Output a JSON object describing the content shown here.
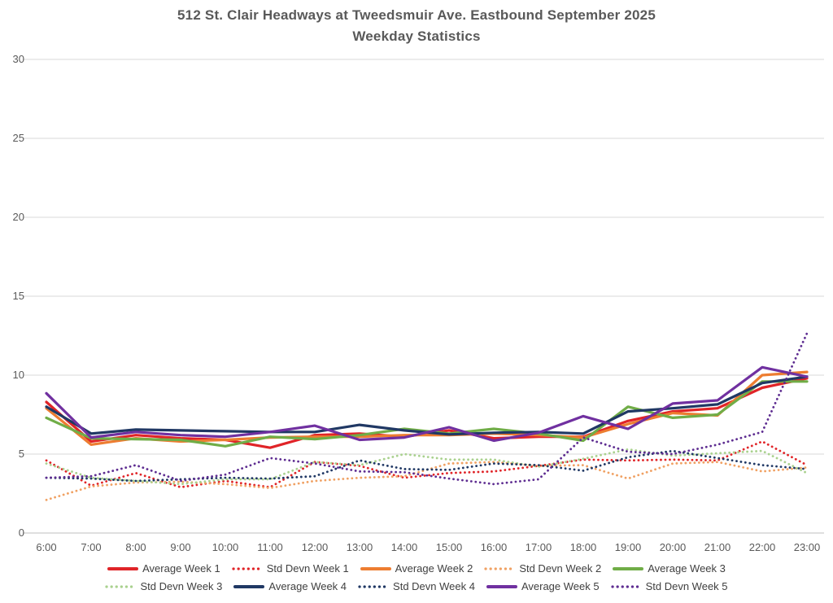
{
  "chart_data": {
    "type": "line",
    "title": "512 St. Clair Headways at Tweedsmuir Ave. Eastbound September 2025",
    "subtitle": "Weekday Statistics",
    "xlabel": "",
    "ylabel": "",
    "ylim": [
      0,
      30
    ],
    "y_ticks": [
      0,
      5,
      10,
      15,
      20,
      25,
      30
    ],
    "grid": "horizontal",
    "legend_position": "bottom",
    "x_labels": [
      "6:00",
      "7:00",
      "8:00",
      "9:00",
      "10:00",
      "11:00",
      "12:00",
      "13:00",
      "14:00",
      "15:00",
      "16:00",
      "17:00",
      "18:00",
      "19:00",
      "20:00",
      "21:00",
      "22:00",
      "23:00"
    ],
    "series": [
      {
        "id": "average-week-1",
        "name": "Average Week 1",
        "color": "#E02428",
        "style": "solid",
        "values": [
          8.3,
          5.8,
          6.2,
          6.0,
          5.9,
          5.4,
          6.2,
          6.3,
          6.1,
          6.5,
          6.0,
          6.1,
          6.1,
          7.1,
          7.7,
          7.9,
          9.2,
          9.8
        ]
      },
      {
        "id": "std-devn-week-1",
        "name": "Std Devn Week 1",
        "color": "#E02428",
        "style": "dotted",
        "values": [
          4.6,
          3.0,
          3.8,
          2.9,
          3.3,
          2.9,
          4.5,
          4.25,
          3.5,
          3.8,
          3.9,
          4.25,
          4.65,
          4.6,
          4.65,
          4.6,
          5.8,
          4.3
        ]
      },
      {
        "id": "average-week-2",
        "name": "Average Week 2",
        "color": "#ED7D31",
        "style": "solid",
        "values": [
          7.9,
          5.6,
          6.0,
          5.8,
          5.9,
          6.05,
          6.1,
          6.1,
          6.2,
          6.2,
          6.3,
          6.2,
          6.05,
          6.9,
          7.6,
          7.45,
          10.0,
          10.2
        ]
      },
      {
        "id": "std-devn-week-2",
        "name": "Std Devn Week 2",
        "color": "#F0A163",
        "style": "dotted",
        "values": [
          2.1,
          2.95,
          3.2,
          3.25,
          3.1,
          2.85,
          3.3,
          3.5,
          3.6,
          4.4,
          4.5,
          4.25,
          4.3,
          3.45,
          4.4,
          4.5,
          3.9,
          4.15
        ]
      },
      {
        "id": "average-week-3",
        "name": "Average Week 3",
        "color": "#70AD47",
        "style": "solid",
        "values": [
          7.3,
          6.0,
          5.95,
          5.9,
          5.5,
          6.1,
          5.95,
          6.2,
          6.6,
          6.3,
          6.6,
          6.3,
          5.85,
          8.0,
          7.3,
          7.5,
          9.6,
          9.6
        ]
      },
      {
        "id": "std-devn-week-3",
        "name": "Std Devn Week 3",
        "color": "#A9D18E",
        "style": "dotted",
        "values": [
          4.4,
          3.5,
          3.3,
          3.1,
          3.4,
          3.4,
          4.5,
          4.3,
          5.0,
          4.65,
          4.65,
          4.2,
          4.7,
          5.3,
          4.9,
          5.05,
          5.2,
          3.8
        ]
      },
      {
        "id": "average-week-4",
        "name": "Average Week 4",
        "color": "#203864",
        "style": "solid",
        "values": [
          8.0,
          6.3,
          6.55,
          6.5,
          6.45,
          6.4,
          6.4,
          6.85,
          6.5,
          6.25,
          6.35,
          6.4,
          6.3,
          7.7,
          7.9,
          8.15,
          9.5,
          9.9
        ]
      },
      {
        "id": "std-devn-week-4",
        "name": "Std Devn Week 4",
        "color": "#203864",
        "style": "dotted",
        "values": [
          3.5,
          3.45,
          3.3,
          3.4,
          3.5,
          3.45,
          3.6,
          4.6,
          4.05,
          4.0,
          4.4,
          4.3,
          3.95,
          4.8,
          5.2,
          4.75,
          4.3,
          4.05
        ]
      },
      {
        "id": "average-week-5",
        "name": "Average Week 5",
        "color": "#7030A0",
        "style": "solid",
        "values": [
          8.85,
          6.05,
          6.4,
          6.2,
          6.1,
          6.4,
          6.8,
          5.9,
          6.05,
          6.7,
          5.85,
          6.35,
          7.4,
          6.6,
          8.2,
          8.4,
          10.5,
          9.9
        ]
      },
      {
        "id": "std-devn-week-5",
        "name": "Std Devn Week 5",
        "color": "#5E2D91",
        "style": "dotted",
        "values": [
          3.5,
          3.6,
          4.3,
          3.3,
          3.7,
          4.75,
          4.4,
          3.9,
          3.85,
          3.45,
          3.1,
          3.4,
          6.05,
          5.15,
          5.0,
          5.6,
          6.4,
          12.65
        ]
      }
    ],
    "colors": {
      "grid_line": "#D9D9D9",
      "axis_line": "#BFBFBF",
      "tick_text": "#595959",
      "title_text": "#595959",
      "legend_text": "#404040"
    }
  }
}
